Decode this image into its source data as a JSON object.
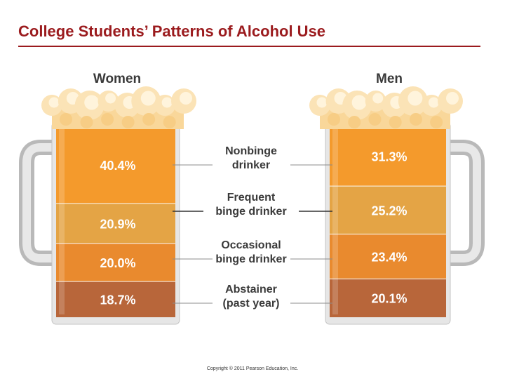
{
  "slide": {
    "title": "College Students’ Patterns of Alcohol Use",
    "copyright": "Copyright © 2011 Pearson Education, Inc."
  },
  "chart_data": {
    "type": "bar",
    "stacked": true,
    "orientation": "vertical",
    "value_unit": "%",
    "categories": [
      "Women",
      "Men"
    ],
    "series": [
      {
        "name": "Nonbinge drinker",
        "label_lines": [
          "Nonbinge",
          "drinker"
        ],
        "values": [
          40.4,
          31.3
        ],
        "labels": [
          "40.4%",
          "31.3%"
        ],
        "color": "#f49a2c"
      },
      {
        "name": "Frequent binge drinker",
        "label_lines": [
          "Frequent",
          "binge drinker"
        ],
        "values": [
          20.9,
          25.2
        ],
        "labels": [
          "20.9%",
          "25.2%"
        ],
        "color": "#e4a445"
      },
      {
        "name": "Occasional binge drinker",
        "label_lines": [
          "Occasional",
          "binge drinker"
        ],
        "values": [
          20.0,
          23.4
        ],
        "labels": [
          "20.0%",
          "23.4%"
        ],
        "color": "#e98a2e"
      },
      {
        "name": "Abstainer (past year)",
        "label_lines": [
          "Abstainer",
          "(past year)"
        ],
        "values": [
          18.7,
          20.1
        ],
        "labels": [
          "18.7%",
          "20.1%"
        ],
        "color": "#b8663a"
      }
    ],
    "legend": "center-between-bars",
    "grid": false
  }
}
